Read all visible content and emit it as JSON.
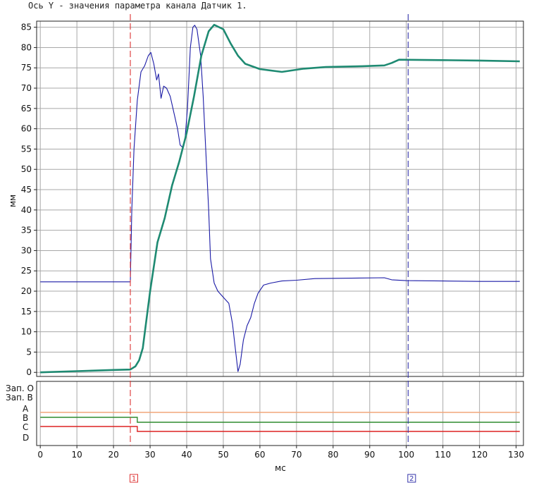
{
  "caption": "Ось Y - значения параметра канала Датчик 1.",
  "chart_data": {
    "type": "line",
    "xlabel": "мс",
    "ylabel": "мм",
    "xlim": [
      -1,
      132
    ],
    "ylim": [
      -1,
      86.5
    ],
    "x_ticks": [
      0,
      10,
      20,
      30,
      40,
      50,
      60,
      70,
      80,
      90,
      100,
      110,
      120,
      130
    ],
    "y_ticks": [
      0,
      5,
      10,
      15,
      20,
      25,
      30,
      35,
      40,
      45,
      50,
      55,
      60,
      65,
      70,
      75,
      80,
      85
    ],
    "grid": true,
    "series": [
      {
        "color": "#1a1aa6",
        "points": [
          [
            0,
            22.3
          ],
          [
            24.6,
            22.3
          ],
          [
            25.0,
            40
          ],
          [
            25.6,
            55
          ],
          [
            26.5,
            67
          ],
          [
            27.5,
            74
          ],
          [
            28.5,
            75.5
          ],
          [
            29.5,
            78
          ],
          [
            30.2,
            78.8
          ],
          [
            31,
            76
          ],
          [
            31.8,
            72
          ],
          [
            32.3,
            73.5
          ],
          [
            33,
            67.5
          ],
          [
            33.7,
            70.5
          ],
          [
            34.5,
            70
          ],
          [
            35.5,
            68
          ],
          [
            36.5,
            64
          ],
          [
            37.5,
            60
          ],
          [
            38.2,
            56
          ],
          [
            38.8,
            55.5
          ],
          [
            39.5,
            57
          ],
          [
            40.2,
            65
          ],
          [
            41,
            80
          ],
          [
            41.7,
            85
          ],
          [
            42.2,
            85.5
          ],
          [
            42.8,
            84.5
          ],
          [
            43.8,
            78
          ],
          [
            44.5,
            68
          ],
          [
            45.2,
            55
          ],
          [
            46,
            40
          ],
          [
            46.5,
            28
          ],
          [
            47.5,
            22
          ],
          [
            48.5,
            20
          ],
          [
            50.5,
            18
          ],
          [
            51.5,
            17
          ],
          [
            52.5,
            12
          ],
          [
            53.4,
            5
          ],
          [
            54,
            0.2
          ],
          [
            54.6,
            2
          ],
          [
            55.5,
            8
          ],
          [
            56.5,
            11.5
          ],
          [
            57.5,
            13.5
          ],
          [
            58.5,
            17
          ],
          [
            59.5,
            19.5
          ],
          [
            61,
            21.5
          ],
          [
            63,
            22
          ],
          [
            66,
            22.5
          ],
          [
            70,
            22.7
          ],
          [
            75,
            23.1
          ],
          [
            85,
            23.2
          ],
          [
            94,
            23.3
          ],
          [
            96,
            22.8
          ],
          [
            100,
            22.6
          ],
          [
            110,
            22.5
          ],
          [
            120,
            22.4
          ],
          [
            131,
            22.4
          ]
        ]
      },
      {
        "color": "#1e8a72",
        "points": [
          [
            0,
            0
          ],
          [
            10,
            0.3
          ],
          [
            20,
            0.6
          ],
          [
            24.6,
            0.7
          ],
          [
            26,
            1.5
          ],
          [
            27,
            3
          ],
          [
            28,
            6
          ],
          [
            30,
            20
          ],
          [
            32,
            32
          ],
          [
            34,
            38
          ],
          [
            36,
            46
          ],
          [
            38,
            52
          ],
          [
            40,
            59
          ],
          [
            42,
            68
          ],
          [
            44,
            78
          ],
          [
            46,
            84
          ],
          [
            47.5,
            85.6
          ],
          [
            50,
            84.5
          ],
          [
            52,
            81
          ],
          [
            54,
            78
          ],
          [
            56,
            76
          ],
          [
            60,
            74.7
          ],
          [
            66,
            74
          ],
          [
            72,
            74.8
          ],
          [
            78,
            75.2
          ],
          [
            88,
            75.4
          ],
          [
            94,
            75.6
          ],
          [
            96,
            76.2
          ],
          [
            98,
            77
          ],
          [
            110,
            76.9
          ],
          [
            120,
            76.8
          ],
          [
            131,
            76.6
          ]
        ]
      }
    ],
    "channels": {
      "labels": [
        "Зап. О",
        "Зап. В",
        "A",
        "B",
        "C",
        "D"
      ],
      "lines": [
        {
          "name": "A",
          "color": "#f2a57a",
          "segments": [
            [
              0,
              131,
              1
            ]
          ]
        },
        {
          "name": "B",
          "color": "#2e8b2e",
          "segments": [
            [
              0,
              26.5,
              1
            ],
            [
              26.5,
              131,
              0
            ]
          ]
        },
        {
          "name": "C",
          "color": "#dd2222",
          "segments": [
            [
              0,
              26.5,
              1
            ],
            [
              26.5,
              131,
              0
            ]
          ]
        }
      ]
    },
    "cursors": [
      {
        "label": "1",
        "x": 24.6,
        "color": "#dd3333"
      },
      {
        "label": "2",
        "x": 100.5,
        "color": "#3333aa"
      }
    ]
  }
}
